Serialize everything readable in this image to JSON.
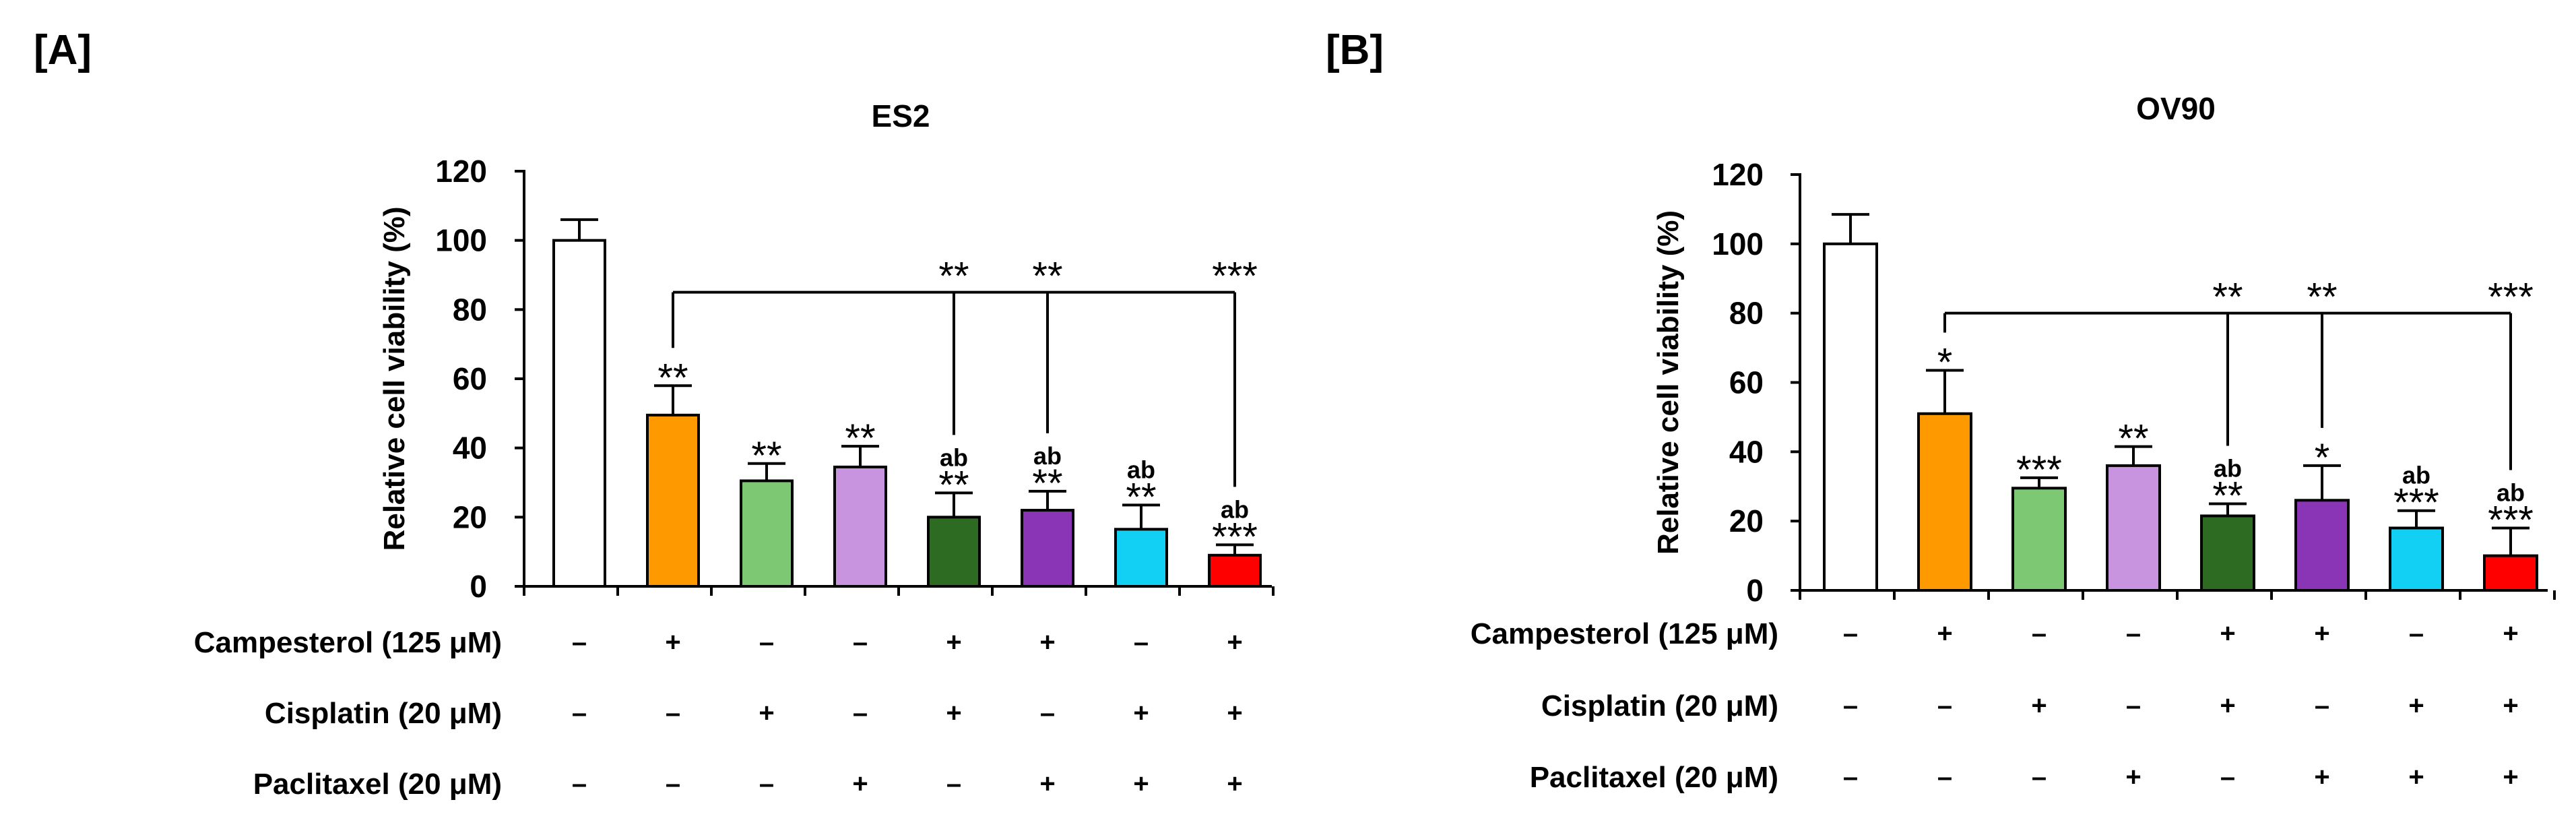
{
  "figure": {
    "panel_labels": [
      "[A]",
      "[B]"
    ],
    "conditions": {
      "labels": [
        "Campesterol (125 μM)",
        "Cisplatin (20 μM)",
        "Paclitaxel (20 μM)"
      ],
      "matrix": [
        [
          "–",
          "+",
          "–",
          "–",
          "+",
          "+",
          "–",
          "+"
        ],
        [
          "–",
          "–",
          "+",
          "–",
          "+",
          "–",
          "+",
          "+"
        ],
        [
          "–",
          "–",
          "–",
          "+",
          "–",
          "+",
          "+",
          "+"
        ]
      ]
    }
  },
  "colors": {
    "bars": [
      "#ffffff",
      "#ff9900",
      "#7cc873",
      "#c894e0",
      "#2d6b22",
      "#8a35b5",
      "#12d0f4",
      "#ff0000"
    ],
    "outline": "#000000"
  },
  "chart_data": [
    {
      "type": "bar",
      "title": "ES2",
      "xlabel": "",
      "ylabel": "Relative cell viability (%)",
      "ylim": [
        0,
        120
      ],
      "yticks": [
        0,
        20,
        40,
        60,
        80,
        100,
        120
      ],
      "categories": [
        "Control",
        "Campesterol",
        "Cisplatin",
        "Paclitaxel",
        "Campesterol + Cisplatin",
        "Campesterol + Paclitaxel",
        "Cisplatin + Paclitaxel",
        "Campesterol + Cisplatin + Paclitaxel"
      ],
      "values": [
        100,
        49.5,
        30.5,
        34.5,
        20,
        22,
        16.5,
        9
      ],
      "errors": [
        6,
        8.5,
        5,
        6,
        7,
        5.5,
        7,
        3
      ],
      "stars": [
        "",
        "**",
        "**",
        "**",
        "**",
        "**",
        "**",
        "***"
      ],
      "ab": [
        "",
        "",
        "",
        "",
        "ab",
        "ab",
        "ab",
        "ab"
      ],
      "comparison": {
        "from_index": 1,
        "y": 85,
        "targets": [
          4,
          5,
          7
        ],
        "stars": [
          "**",
          "**",
          "***"
        ]
      }
    },
    {
      "type": "bar",
      "title": "OV90",
      "xlabel": "",
      "ylabel": "Relative cell viability (%)",
      "ylim": [
        0,
        120
      ],
      "yticks": [
        0,
        20,
        40,
        60,
        80,
        100,
        120
      ],
      "categories": [
        "Control",
        "Campesterol",
        "Cisplatin",
        "Paclitaxel",
        "Campesterol + Cisplatin",
        "Campesterol + Paclitaxel",
        "Cisplatin + Paclitaxel",
        "Campesterol + Cisplatin + Paclitaxel"
      ],
      "values": [
        100,
        51,
        29.5,
        36,
        21.5,
        26,
        18,
        10
      ],
      "errors": [
        8.5,
        12.5,
        3,
        5.5,
        3.5,
        10,
        5,
        8
      ],
      "stars": [
        "",
        "*",
        "***",
        "**",
        "**",
        "*",
        "***",
        "***"
      ],
      "ab": [
        "",
        "",
        "",
        "",
        "ab",
        "",
        "ab",
        "ab"
      ],
      "comparison": {
        "from_index": 1,
        "y": 80,
        "targets": [
          4,
          5,
          7
        ],
        "stars": [
          "**",
          "**",
          "***"
        ]
      }
    }
  ]
}
